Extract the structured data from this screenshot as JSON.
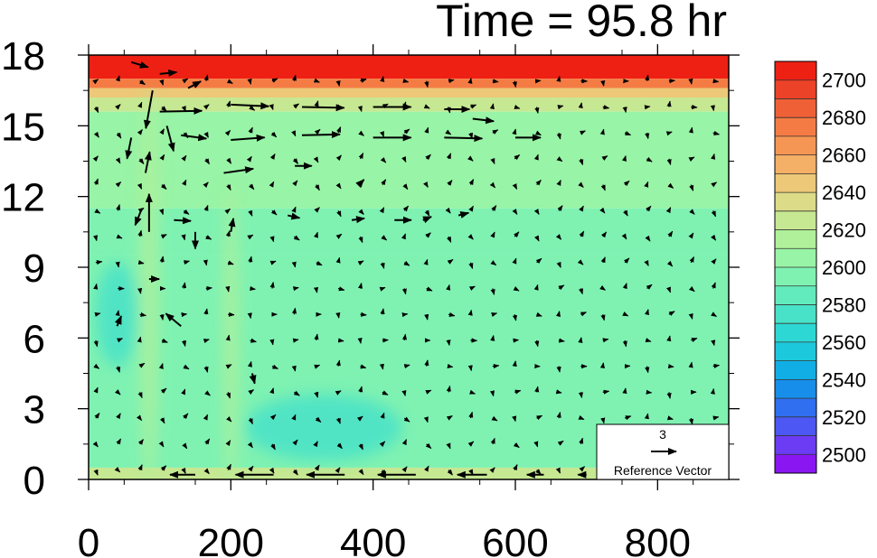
{
  "chart_data": {
    "type": "heatmap",
    "title": "Time = 95.8 hr",
    "xlabel": "",
    "ylabel": "",
    "xlim": [
      0,
      900
    ],
    "ylim": [
      0,
      18
    ],
    "xticks": [
      0,
      200,
      400,
      600,
      800
    ],
    "yticks": [
      0,
      3,
      6,
      9,
      12,
      15,
      18
    ],
    "colorbar": {
      "levels": [
        2490,
        2500,
        2510,
        2520,
        2530,
        2540,
        2550,
        2560,
        2570,
        2580,
        2590,
        2600,
        2610,
        2620,
        2630,
        2640,
        2650,
        2660,
        2670,
        2680,
        2690,
        2700,
        2710
      ],
      "colors": [
        "#8a16f2",
        "#6b3cf4",
        "#4d57f4",
        "#2f6ff0",
        "#178eea",
        "#11aee6",
        "#1cc8dc",
        "#2dd8d4",
        "#48e2c8",
        "#62ecbe",
        "#7ff2b2",
        "#98f4a6",
        "#b0f09a",
        "#c6e892",
        "#dcdc88",
        "#ecc878",
        "#f4b066",
        "#f69654",
        "#f47c44",
        "#f06036",
        "#ec4228",
        "#ee2014"
      ],
      "labels": [
        2500,
        2520,
        2540,
        2560,
        2580,
        2600,
        2620,
        2640,
        2660,
        2680,
        2700
      ]
    },
    "field_bands": [
      {
        "y": [
          17.0,
          18
        ],
        "value": 2705
      },
      {
        "y": [
          16.6,
          17.0
        ],
        "value": 2675
      },
      {
        "y": [
          16.2,
          16.6
        ],
        "value": 2640
      },
      {
        "y": [
          15.6,
          16.2
        ],
        "value": 2620
      },
      {
        "y": [
          11.5,
          15.6
        ],
        "value": 2607
      },
      {
        "y": [
          9.5,
          11.5
        ],
        "value": 2598
      },
      {
        "y": [
          0.5,
          9.5
        ],
        "value": 2590
      },
      {
        "y": [
          0,
          0.5
        ],
        "value": 2625
      }
    ],
    "field_blobs": [
      {
        "x": 330,
        "y": 2.2,
        "rx": 110,
        "ry": 1.4,
        "value": 2575
      },
      {
        "x": 40,
        "y": 7.0,
        "rx": 30,
        "ry": 2.2,
        "value": 2575
      },
      {
        "x": 85,
        "y": 8.0,
        "rx": 12,
        "ry": 8.5,
        "value": 2618
      },
      {
        "x": 200,
        "y": 6.0,
        "rx": 10,
        "ry": 6.5,
        "value": 2612
      }
    ],
    "vectors": [
      {
        "x": 60,
        "y": 17.7,
        "u": 2.0,
        "v": -0.6
      },
      {
        "x": 100,
        "y": 17.2,
        "u": 2.0,
        "v": 0.2
      },
      {
        "x": 140,
        "y": 16.6,
        "u": 1.5,
        "v": 0.8
      },
      {
        "x": 100,
        "y": 15.6,
        "u": 5.0,
        "v": 0.1
      },
      {
        "x": 200,
        "y": 15.9,
        "u": 4.5,
        "v": -0.2
      },
      {
        "x": 300,
        "y": 15.8,
        "u": 5.0,
        "v": -0.1
      },
      {
        "x": 400,
        "y": 15.8,
        "u": 4.5,
        "v": 0.0
      },
      {
        "x": 500,
        "y": 15.7,
        "u": 3.0,
        "v": 0.0
      },
      {
        "x": 130,
        "y": 14.6,
        "u": 3.0,
        "v": -0.4
      },
      {
        "x": 200,
        "y": 14.4,
        "u": 4.0,
        "v": 0.3
      },
      {
        "x": 300,
        "y": 14.6,
        "u": 4.5,
        "v": 0.1
      },
      {
        "x": 400,
        "y": 14.5,
        "u": 4.5,
        "v": 0.0
      },
      {
        "x": 500,
        "y": 14.5,
        "u": 4.5,
        "v": -0.1
      },
      {
        "x": 600,
        "y": 14.5,
        "u": 3.0,
        "v": 0.0
      },
      {
        "x": 540,
        "y": 15.3,
        "u": 2.5,
        "v": -0.3
      },
      {
        "x": 190,
        "y": 13.0,
        "u": 3.5,
        "v": 0.5
      },
      {
        "x": 290,
        "y": 13.3,
        "u": 2.0,
        "v": 0.0
      },
      {
        "x": 80,
        "y": 13.0,
        "u": 0.5,
        "v": 2.5
      },
      {
        "x": 90,
        "y": 16.5,
        "u": -0.8,
        "v": -4.5
      },
      {
        "x": 110,
        "y": 15.0,
        "u": 0.8,
        "v": -3.0
      },
      {
        "x": 60,
        "y": 14.5,
        "u": -0.5,
        "v": -2.5
      },
      {
        "x": 75,
        "y": 11.5,
        "u": -0.8,
        "v": -2.0
      },
      {
        "x": 85,
        "y": 10.5,
        "u": 0.0,
        "v": 4.5
      },
      {
        "x": 85,
        "y": 8.5,
        "u": 1.2,
        "v": 0.0
      },
      {
        "x": 120,
        "y": 11.0,
        "u": 2.0,
        "v": -0.1
      },
      {
        "x": 130,
        "y": 6.5,
        "u": -1.8,
        "v": 1.5
      },
      {
        "x": 150,
        "y": 10.5,
        "u": 0.0,
        "v": -2.0
      },
      {
        "x": 200,
        "y": 10.5,
        "u": 0.3,
        "v": 1.6
      },
      {
        "x": 230,
        "y": 4.5,
        "u": 0.3,
        "v": -1.2
      },
      {
        "x": 40,
        "y": 6.5,
        "u": 0.5,
        "v": 1.2
      },
      {
        "x": 280,
        "y": 11.2,
        "u": 1.4,
        "v": -0.3
      },
      {
        "x": 370,
        "y": 11.0,
        "u": 1.5,
        "v": 0.2
      },
      {
        "x": 430,
        "y": 11.0,
        "u": 2.0,
        "v": 0.0
      },
      {
        "x": 520,
        "y": 11.2,
        "u": 1.2,
        "v": 0.3
      },
      {
        "x": 470,
        "y": 11.0,
        "u": 1.0,
        "v": 0.4
      },
      {
        "x": 380,
        "y": 12.5,
        "u": 0.6,
        "v": 0.6
      },
      {
        "x": 150,
        "y": 0.2,
        "u": -3.0,
        "v": 0.0
      },
      {
        "x": 260,
        "y": 0.2,
        "u": -4.5,
        "v": 0.0
      },
      {
        "x": 360,
        "y": 0.2,
        "u": -4.5,
        "v": 0.0
      },
      {
        "x": 460,
        "y": 0.2,
        "u": -4.5,
        "v": 0.0
      },
      {
        "x": 560,
        "y": 0.2,
        "u": -3.5,
        "v": 0.0
      },
      {
        "x": 640,
        "y": 0.2,
        "u": -2.0,
        "v": 0.0
      },
      {
        "x": 700,
        "y": 0.2,
        "u": -1.0,
        "v": 0.0
      }
    ],
    "reference_vector": {
      "value": "3",
      "label": "Reference Vector",
      "magnitude": 3
    }
  }
}
